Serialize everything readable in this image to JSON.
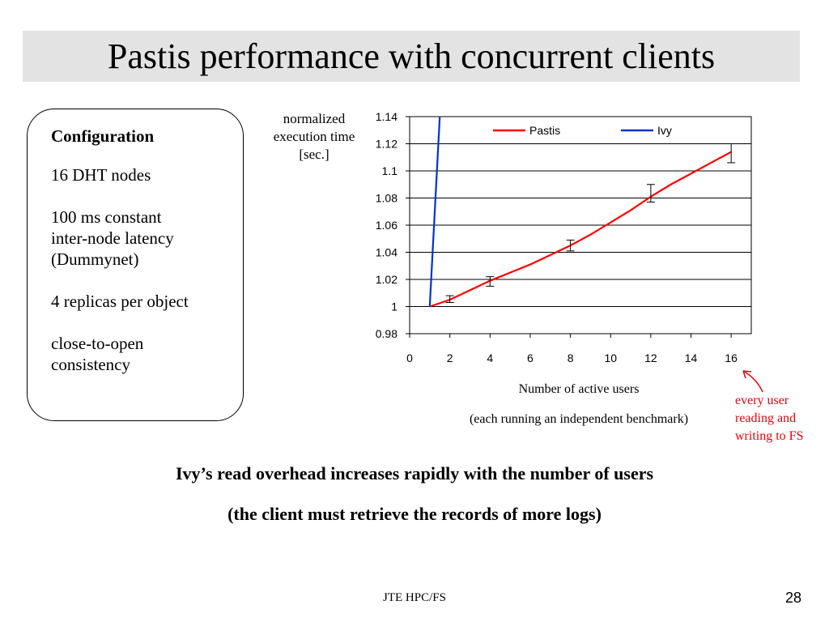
{
  "slide": {
    "title": "Pastis performance with concurrent clients",
    "config_title": "Configuration",
    "config_items": [
      "16 DHT nodes",
      "100 ms constant\ninter-node latency\n(Dummynet)",
      "4 replicas per object",
      "close-to-open\nconsistency"
    ],
    "annotation": "every user reading and writing to FS",
    "conclusion_1": "Ivy’s read overhead increases rapidly with the number of users",
    "conclusion_2": "(the client must retrieve the records of more logs)",
    "footer": "JTE HPC/FS",
    "page_number": "28"
  },
  "chart_data": {
    "type": "line",
    "ylabel": "normalized execution time [sec.]",
    "xlabel": "Number of active users",
    "xlabel_note": "(each running an independent benchmark)",
    "xlim": [
      0,
      17
    ],
    "ylim": [
      0.98,
      1.14
    ],
    "xticks": [
      "0",
      "2",
      "4",
      "6",
      "8",
      "10",
      "12",
      "14",
      "16"
    ],
    "yticks": [
      "0.98",
      "1",
      "1.02",
      "1.04",
      "1.06",
      "1.08",
      "1.1",
      "1.12",
      "1.14"
    ],
    "grid": true,
    "legend_position": "top",
    "series": [
      {
        "name": "Pastis",
        "color": "#ff0000",
        "x": [
          1,
          2,
          3,
          4,
          5,
          6,
          7,
          8,
          9,
          10,
          11,
          12,
          13,
          14,
          15,
          16
        ],
        "y": [
          1.0,
          1.005,
          1.012,
          1.019,
          1.025,
          1.031,
          1.038,
          1.045,
          1.053,
          1.062,
          1.071,
          1.081,
          1.09,
          1.098,
          1.106,
          1.114
        ]
      },
      {
        "name": "Ivy",
        "color": "#0033cc",
        "x": [
          1,
          1.5
        ],
        "y": [
          1.0,
          1.14
        ]
      }
    ],
    "error_bars": [
      {
        "x": 2,
        "low": 1.003,
        "high": 1.008
      },
      {
        "x": 4,
        "low": 1.015,
        "high": 1.022
      },
      {
        "x": 8,
        "low": 1.041,
        "high": 1.049
      },
      {
        "x": 12,
        "low": 1.077,
        "high": 1.09
      },
      {
        "x": 16,
        "low": 1.106,
        "high": 1.12
      }
    ]
  }
}
